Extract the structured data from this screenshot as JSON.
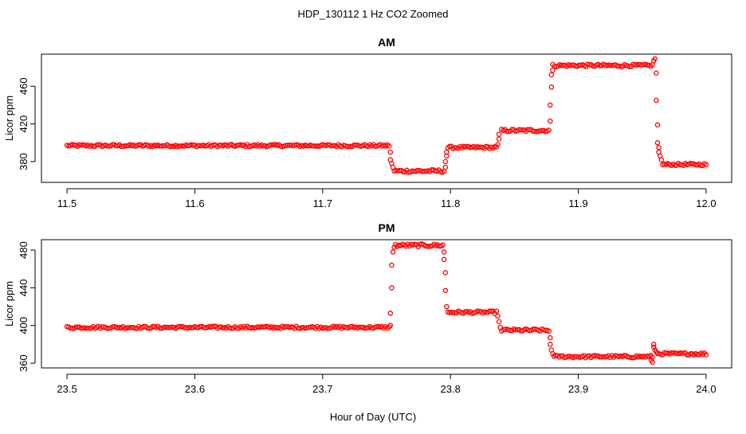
{
  "figure": {
    "title": "HDP_130112  1 Hz CO2 Zoomed",
    "xlabel": "Hour of Day (UTC)"
  },
  "chart_data": [
    {
      "type": "scatter",
      "title": "AM",
      "xlabel": "Hour of Day (UTC)",
      "ylabel": "Licor ppm",
      "xlim": [
        11.48,
        12.02
      ],
      "ylim": [
        358,
        494
      ],
      "xticks": [
        "11.5",
        "11.6",
        "11.7",
        "11.8",
        "11.9",
        "12.0"
      ],
      "yticks": [
        "380",
        "420",
        "460"
      ],
      "marker_color": "#ff0000",
      "grid": false,
      "segments": [
        {
          "x_start": 11.5,
          "x_end": 11.752,
          "y": 397,
          "noise": 1.2
        },
        {
          "x_start": 11.756,
          "x_end": 11.795,
          "y": 370,
          "noise": 1.5
        },
        {
          "x_start": 11.798,
          "x_end": 11.836,
          "y": 395,
          "noise": 1.3
        },
        {
          "x_start": 11.84,
          "x_end": 11.877,
          "y": 413,
          "noise": 1.4
        },
        {
          "x_start": 11.88,
          "x_end": 11.958,
          "y": 482,
          "noise": 1.3
        },
        {
          "x_start": 11.966,
          "x_end": 12.0,
          "y": 377,
          "noise": 1.2
        }
      ],
      "transition_points": [
        {
          "x": 11.753,
          "y": 390
        },
        {
          "x": 11.753,
          "y": 382
        },
        {
          "x": 11.754,
          "y": 378
        },
        {
          "x": 11.755,
          "y": 374
        },
        {
          "x": 11.796,
          "y": 374
        },
        {
          "x": 11.796,
          "y": 380
        },
        {
          "x": 11.797,
          "y": 386
        },
        {
          "x": 11.797,
          "y": 390
        },
        {
          "x": 11.837,
          "y": 398
        },
        {
          "x": 11.838,
          "y": 404
        },
        {
          "x": 11.838,
          "y": 409
        },
        {
          "x": 11.878,
          "y": 423
        },
        {
          "x": 11.878,
          "y": 440
        },
        {
          "x": 11.879,
          "y": 459
        },
        {
          "x": 11.879,
          "y": 472
        },
        {
          "x": 11.88,
          "y": 477
        },
        {
          "x": 11.959,
          "y": 487
        },
        {
          "x": 11.96,
          "y": 489
        },
        {
          "x": 11.961,
          "y": 474
        },
        {
          "x": 11.961,
          "y": 445
        },
        {
          "x": 11.962,
          "y": 419
        },
        {
          "x": 11.962,
          "y": 400
        },
        {
          "x": 11.963,
          "y": 395
        },
        {
          "x": 11.963,
          "y": 390
        },
        {
          "x": 11.964,
          "y": 386
        },
        {
          "x": 11.965,
          "y": 382
        }
      ]
    },
    {
      "type": "scatter",
      "title": "PM",
      "xlabel": "Hour of Day (UTC)",
      "ylabel": "Licor ppm",
      "xlim": [
        23.48,
        24.02
      ],
      "ylim": [
        355,
        491
      ],
      "xticks": [
        "23.5",
        "23.6",
        "23.7",
        "23.8",
        "23.9",
        "24.0"
      ],
      "yticks": [
        "360",
        "400",
        "440",
        "480"
      ],
      "marker_color": "#ff0000",
      "grid": false,
      "segments": [
        {
          "x_start": 23.5,
          "x_end": 23.752,
          "y": 398,
          "noise": 1.2
        },
        {
          "x_start": 23.757,
          "x_end": 23.794,
          "y": 485,
          "noise": 1.5
        },
        {
          "x_start": 23.798,
          "x_end": 23.836,
          "y": 414,
          "noise": 1.3
        },
        {
          "x_start": 23.84,
          "x_end": 23.877,
          "y": 395,
          "noise": 1.4
        },
        {
          "x_start": 23.881,
          "x_end": 23.958,
          "y": 367,
          "noise": 1.3
        },
        {
          "x_start": 23.962,
          "x_end": 24.0,
          "y": 370,
          "noise": 1.2
        }
      ],
      "transition_points": [
        {
          "x": 23.753,
          "y": 400
        },
        {
          "x": 23.753,
          "y": 413
        },
        {
          "x": 23.754,
          "y": 440
        },
        {
          "x": 23.754,
          "y": 464
        },
        {
          "x": 23.755,
          "y": 478
        },
        {
          "x": 23.756,
          "y": 483
        },
        {
          "x": 23.795,
          "y": 478
        },
        {
          "x": 23.795,
          "y": 470
        },
        {
          "x": 23.796,
          "y": 456
        },
        {
          "x": 23.796,
          "y": 437
        },
        {
          "x": 23.797,
          "y": 420
        },
        {
          "x": 23.837,
          "y": 410
        },
        {
          "x": 23.838,
          "y": 404
        },
        {
          "x": 23.839,
          "y": 398
        },
        {
          "x": 23.878,
          "y": 387
        },
        {
          "x": 23.878,
          "y": 380
        },
        {
          "x": 23.879,
          "y": 374
        },
        {
          "x": 23.88,
          "y": 370
        },
        {
          "x": 23.957,
          "y": 363
        },
        {
          "x": 23.958,
          "y": 361
        },
        {
          "x": 23.959,
          "y": 380
        },
        {
          "x": 23.959,
          "y": 377
        },
        {
          "x": 23.96,
          "y": 374
        },
        {
          "x": 23.961,
          "y": 372
        }
      ]
    }
  ]
}
